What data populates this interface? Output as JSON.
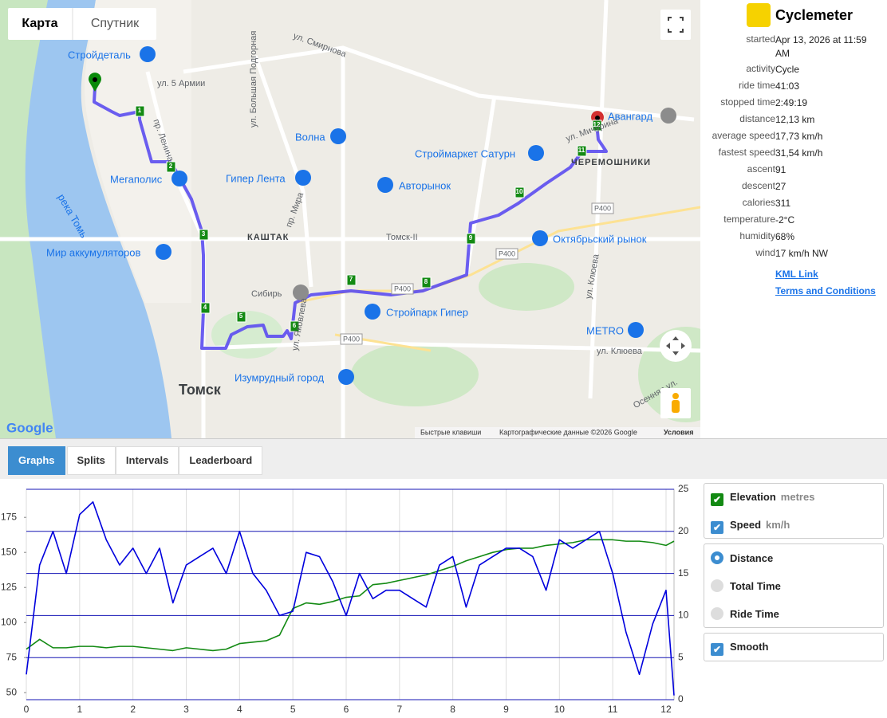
{
  "map": {
    "type_buttons": [
      "Карта",
      "Спутник"
    ],
    "logo": "Google",
    "labels": [
      "Стройдеталь",
      "ул. 5 Армии",
      "ул. Смирнова",
      "пр. Ленина",
      "ул. Большая Подгорная",
      "Волна",
      "Мегаполис",
      "Гипер Лента",
      "пр. Мира",
      "река Томь",
      "Мир аккумуляторов",
      "КАШТАК",
      "Авторынок",
      "Строймаркет Сатурн",
      "Томск-II",
      "Октябрьский рынок",
      "Сибирь",
      "Стройпарк Гипер",
      "Изумрудный город",
      "Томск",
      "METRO",
      "ул. Клюева",
      "ул. Клюева",
      "ул. Мичурина",
      "Авангард",
      "ЧЕРЕМОШНИКИ",
      "ул. Яковлева",
      "Осенняя ул.",
      "P400",
      "P400",
      "P400",
      "P400"
    ],
    "markers": [
      "1",
      "2",
      "3",
      "4",
      "5",
      "6",
      "7",
      "8",
      "9",
      "10",
      "11",
      "12"
    ],
    "footer": [
      "Быстрые клавиши",
      "Картографические данные ©2026 Google",
      "Условия"
    ]
  },
  "app": {
    "name": "Cyclemeter",
    "stats": [
      {
        "label": "started",
        "value": "Apr 13, 2026 at 11:59 AM"
      },
      {
        "label": "activity",
        "value": "Cycle"
      },
      {
        "label": "ride time",
        "value": "41:03"
      },
      {
        "label": "stopped time",
        "value": "2:49:19"
      },
      {
        "label": "distance",
        "value": "12,13 km"
      },
      {
        "label": "average speed",
        "value": "17,73 km/h"
      },
      {
        "label": "fastest speed",
        "value": "31,54 km/h"
      },
      {
        "label": "ascent",
        "value": "91"
      },
      {
        "label": "descent",
        "value": "27"
      },
      {
        "label": "calories",
        "value": "311"
      },
      {
        "label": "temperature",
        "value": "-2°C"
      },
      {
        "label": "humidity",
        "value": "68%"
      },
      {
        "label": "wind",
        "value": "17 km/h NW"
      }
    ],
    "links": [
      "KML Link",
      "Terms and Conditions"
    ]
  },
  "tabs": [
    "Graphs",
    "Splits",
    "Intervals",
    "Leaderboard"
  ],
  "chart_data": {
    "type": "line",
    "x": [
      0,
      0.25,
      0.5,
      0.75,
      1,
      1.25,
      1.5,
      1.75,
      2,
      2.25,
      2.5,
      2.75,
      3,
      3.25,
      3.5,
      3.75,
      4,
      4.25,
      4.5,
      4.75,
      5,
      5.25,
      5.5,
      5.75,
      6,
      6.25,
      6.5,
      6.75,
      7,
      7.25,
      7.5,
      7.75,
      8,
      8.25,
      8.5,
      8.75,
      9,
      9.25,
      9.5,
      9.75,
      10,
      10.25,
      10.5,
      10.75,
      11,
      11.25,
      11.5,
      11.75,
      12,
      12.15
    ],
    "xlim": [
      0,
      12.15
    ],
    "xticks": [
      0,
      1,
      2,
      3,
      4,
      5,
      6,
      7,
      8,
      9,
      10,
      11,
      12
    ],
    "ylim": [
      45,
      195
    ],
    "yticks": [
      50,
      75,
      100,
      125,
      150,
      175
    ],
    "y2lim": [
      0,
      25
    ],
    "y2ticks": [
      0,
      5,
      10,
      15,
      20,
      25
    ],
    "grid": true,
    "series": [
      {
        "name": "Elevation",
        "unit": "metres",
        "color": "#138a13",
        "values": [
          81,
          88,
          82,
          82,
          83,
          83,
          82,
          83,
          83,
          82,
          81,
          80,
          82,
          81,
          80,
          81,
          85,
          86,
          87,
          91,
          110,
          114,
          113,
          115,
          118,
          119,
          127,
          128,
          130,
          132,
          134,
          137,
          140,
          144,
          147,
          150,
          152,
          153,
          153,
          155,
          156,
          157,
          159,
          159,
          159,
          158,
          158,
          157,
          155,
          158
        ]
      },
      {
        "name": "Speed",
        "unit": "km/h",
        "color": "#0000dd",
        "axis": "y2",
        "values": [
          3,
          16,
          20,
          15,
          22,
          23.5,
          19,
          16,
          18,
          15,
          18,
          11.5,
          16,
          17,
          18,
          15,
          20,
          15,
          13,
          10,
          10.5,
          17.5,
          17,
          14,
          10,
          15,
          12,
          13,
          13,
          12,
          11,
          16,
          17,
          11,
          16,
          17,
          18,
          18,
          17,
          13,
          19,
          18,
          19,
          20,
          15,
          8,
          3,
          9,
          13,
          0.5
        ]
      }
    ]
  },
  "controls": {
    "x_options": [
      "Distance",
      "Total Time",
      "Ride Time"
    ],
    "smooth": "Smooth"
  }
}
